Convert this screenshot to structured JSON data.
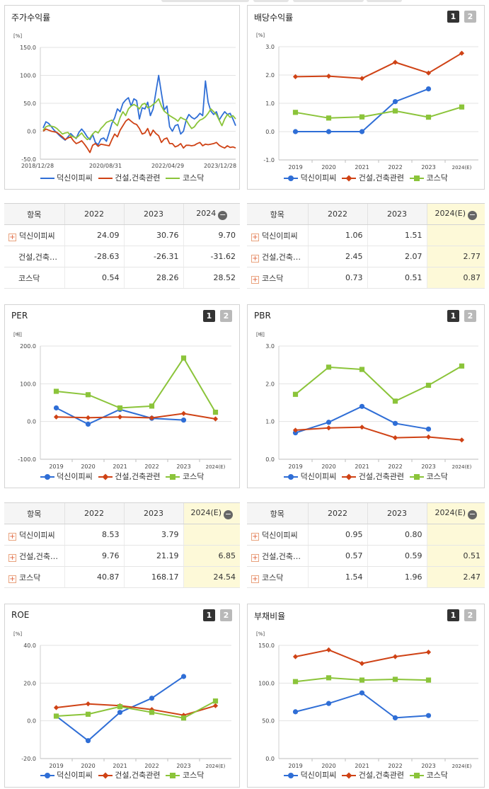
{
  "colors": {
    "blue": "#2f6ed6",
    "red": "#cf4215",
    "green": "#8bc43a"
  },
  "legend": [
    "덕신이피씨",
    "건설,건축관련",
    "코스닥"
  ],
  "stock_panel": {
    "title": "주가수익률"
  },
  "div_panel": {
    "title": "배당수익률",
    "page1": "1",
    "page2": "2"
  },
  "per_panel": {
    "title": "PER",
    "page1": "1",
    "page2": "2"
  },
  "pbr_panel": {
    "title": "PBR",
    "page1": "1",
    "page2": "2"
  },
  "roe_panel": {
    "title": "ROE",
    "page1": "1",
    "page2": "2"
  },
  "debt_panel": {
    "title": "부채비율",
    "page1": "1",
    "page2": "2"
  },
  "chart_data": [
    {
      "id": "stock",
      "type": "line",
      "unit": "[%]",
      "yticks": [
        "150.0",
        "100.0",
        "50.0",
        "0.0",
        "-50.0"
      ],
      "ylim": [
        -50,
        150
      ],
      "xticks": [
        "2018/12/28",
        "2020/08/31",
        "2022/04/29",
        "2023/12/28"
      ],
      "series": [
        {
          "name": "덕신이피씨",
          "color": "#2f6ed6",
          "values": [
            6,
            17,
            14,
            8,
            2,
            -3,
            -8,
            -12,
            -16,
            -10,
            -4,
            -9,
            -13,
            -2,
            4,
            -2,
            -10,
            -15,
            -6,
            -20,
            -24,
            -14,
            -12,
            -18,
            -2,
            14,
            24,
            40,
            35,
            50,
            56,
            60,
            45,
            58,
            55,
            22,
            42,
            40,
            52,
            28,
            40,
            70,
            100,
            68,
            38,
            45,
            8,
            0,
            10,
            12,
            -5,
            0,
            20,
            30,
            25,
            22,
            26,
            32,
            28,
            90,
            52,
            36,
            30,
            35,
            20,
            28,
            35,
            30,
            32,
            22,
            10
          ]
        },
        {
          "name": "건설,건축관련",
          "color": "#cf4215",
          "values": [
            0,
            4,
            2,
            0,
            -1,
            -2,
            -6,
            -10,
            -15,
            -12,
            -10,
            -17,
            -22,
            -20,
            -17,
            -23,
            -30,
            -38,
            -25,
            -22,
            -27,
            -23,
            -24,
            -25,
            -26,
            -15,
            -5,
            -10,
            2,
            10,
            18,
            22,
            18,
            14,
            12,
            5,
            -5,
            -3,
            5,
            -8,
            2,
            -4,
            -8,
            -20,
            -14,
            -12,
            -22,
            -22,
            -28,
            -26,
            -22,
            -30,
            -25,
            -25,
            -26,
            -25,
            -22,
            -20,
            -26,
            -23,
            -24,
            -23,
            -22,
            -20,
            -25,
            -28,
            -30,
            -26,
            -29,
            -28,
            -30
          ]
        },
        {
          "name": "코스닥",
          "color": "#8bc43a",
          "values": [
            2,
            8,
            10,
            9,
            8,
            5,
            0,
            -5,
            -3,
            -2,
            -8,
            -10,
            -12,
            -8,
            -3,
            -10,
            -15,
            -12,
            -5,
            0,
            -3,
            5,
            10,
            16,
            18,
            20,
            15,
            10,
            25,
            35,
            28,
            40,
            45,
            48,
            45,
            40,
            48,
            50,
            42,
            44,
            48,
            52,
            58,
            45,
            36,
            32,
            28,
            25,
            22,
            18,
            25,
            22,
            20,
            12,
            5,
            8,
            15,
            20,
            22,
            26,
            32,
            40,
            35,
            30,
            20,
            10,
            22,
            30,
            25,
            28,
            22
          ]
        }
      ]
    },
    {
      "id": "div",
      "type": "line",
      "unit": "[%]",
      "yticks": [
        "3.0",
        "2.0",
        "1.0",
        "0.0",
        "-1.0"
      ],
      "ylim": [
        -1,
        3
      ],
      "categories": [
        "2019",
        "2020",
        "2021",
        "2022",
        "2023",
        "2024(E)"
      ],
      "series": [
        {
          "name": "덕신이피씨",
          "color": "#2f6ed6",
          "values": [
            0.0,
            0.0,
            0.0,
            1.06,
            1.51,
            null
          ]
        },
        {
          "name": "건설,건축관련",
          "color": "#cf4215",
          "values": [
            1.94,
            1.96,
            1.88,
            2.45,
            2.07,
            2.77
          ]
        },
        {
          "name": "코스닥",
          "color": "#8bc43a",
          "values": [
            0.68,
            0.48,
            0.52,
            0.73,
            0.51,
            0.87
          ]
        }
      ]
    },
    {
      "id": "per",
      "type": "line",
      "unit": "[배]",
      "yticks": [
        "200.0",
        "100.0",
        "0.0",
        "-100.0"
      ],
      "ylim": [
        -100,
        200
      ],
      "categories": [
        "2019",
        "2020",
        "2021",
        "2022",
        "2023",
        "2024(E)"
      ],
      "series": [
        {
          "name": "덕신이피씨",
          "color": "#2f6ed6",
          "values": [
            36,
            -7,
            32,
            8.53,
            3.79,
            null
          ]
        },
        {
          "name": "건설,건축관련",
          "color": "#cf4215",
          "values": [
            12,
            10,
            12,
            9.76,
            21.19,
            6.85
          ]
        },
        {
          "name": "코스닥",
          "color": "#8bc43a",
          "values": [
            80,
            71,
            36,
            40.87,
            168.17,
            24.54
          ]
        }
      ]
    },
    {
      "id": "pbr",
      "type": "line",
      "unit": "[배]",
      "yticks": [
        "3.0",
        "2.0",
        "1.0",
        "0.0"
      ],
      "ylim": [
        0,
        3
      ],
      "categories": [
        "2019",
        "2020",
        "2021",
        "2022",
        "2023",
        "2024(E)"
      ],
      "series": [
        {
          "name": "덕신이피씨",
          "color": "#2f6ed6",
          "values": [
            0.7,
            0.98,
            1.4,
            0.95,
            0.8,
            null
          ]
        },
        {
          "name": "건설,건축관련",
          "color": "#cf4215",
          "values": [
            0.77,
            0.83,
            0.85,
            0.57,
            0.59,
            0.51
          ]
        },
        {
          "name": "코스닥",
          "color": "#8bc43a",
          "values": [
            1.72,
            2.44,
            2.38,
            1.54,
            1.96,
            2.47
          ]
        }
      ]
    },
    {
      "id": "roe",
      "type": "line",
      "unit": "[%]",
      "yticks": [
        "40.0",
        "20.0",
        "0.0",
        "-20.0"
      ],
      "ylim": [
        -20,
        40
      ],
      "categories": [
        "2019",
        "2020",
        "2021",
        "2022",
        "2023",
        "2024(E)"
      ],
      "series": [
        {
          "name": "덕신이피씨",
          "color": "#2f6ed6",
          "values": [
            2.5,
            -10.5,
            4.5,
            12,
            23.5,
            null
          ]
        },
        {
          "name": "건설,건축관련",
          "color": "#cf4215",
          "values": [
            7,
            9,
            8,
            6,
            3,
            8
          ]
        },
        {
          "name": "코스닥",
          "color": "#8bc43a",
          "values": [
            2.5,
            3.5,
            7.5,
            4.5,
            1.5,
            10.5
          ]
        }
      ]
    },
    {
      "id": "debt",
      "type": "line",
      "unit": "[%]",
      "yticks": [
        "150.0",
        "100.0",
        "50.0",
        "0.0"
      ],
      "ylim": [
        0,
        150
      ],
      "categories": [
        "2019",
        "2020",
        "2021",
        "2022",
        "2023",
        "2024(E)"
      ],
      "series": [
        {
          "name": "덕신이피씨",
          "color": "#2f6ed6",
          "values": [
            62,
            73,
            87,
            54,
            57,
            null
          ]
        },
        {
          "name": "건설,건축관련",
          "color": "#cf4215",
          "values": [
            135,
            144,
            126,
            135,
            141,
            null
          ]
        },
        {
          "name": "코스닥",
          "color": "#8bc43a",
          "values": [
            102,
            107,
            104,
            105,
            104,
            null
          ]
        }
      ]
    }
  ],
  "tables": {
    "stock": {
      "headers": [
        "항목",
        "2022",
        "2023",
        "2024"
      ],
      "rows": [
        {
          "name": "덕신이피씨",
          "plus": true,
          "values": [
            "24.09",
            "30.76",
            "9.70"
          ]
        },
        {
          "name": "건설,건축…",
          "plus": false,
          "values": [
            "-28.63",
            "-26.31",
            "-31.62"
          ]
        },
        {
          "name": "코스닥",
          "plus": false,
          "values": [
            "0.54",
            "28.26",
            "28.52"
          ]
        }
      ]
    },
    "div": {
      "headers": [
        "항목",
        "2022",
        "2023",
        "2024(E)"
      ],
      "rows": [
        {
          "name": "덕신이피씨",
          "plus": true,
          "values": [
            "1.06",
            "1.51",
            ""
          ]
        },
        {
          "name": "건설,건축…",
          "plus": true,
          "values": [
            "2.45",
            "2.07",
            "2.77"
          ]
        },
        {
          "name": "코스닥",
          "plus": true,
          "values": [
            "0.73",
            "0.51",
            "0.87"
          ]
        }
      ]
    },
    "per": {
      "headers": [
        "항목",
        "2022",
        "2023",
        "2024(E)"
      ],
      "rows": [
        {
          "name": "덕신이피씨",
          "plus": true,
          "values": [
            "8.53",
            "3.79",
            ""
          ]
        },
        {
          "name": "건설,건축…",
          "plus": true,
          "values": [
            "9.76",
            "21.19",
            "6.85"
          ]
        },
        {
          "name": "코스닥",
          "plus": true,
          "values": [
            "40.87",
            "168.17",
            "24.54"
          ]
        }
      ]
    },
    "pbr": {
      "headers": [
        "항목",
        "2022",
        "2023",
        "2024(E)"
      ],
      "rows": [
        {
          "name": "덕신이피씨",
          "plus": true,
          "values": [
            "0.95",
            "0.80",
            ""
          ]
        },
        {
          "name": "건설,건축…",
          "plus": true,
          "values": [
            "0.57",
            "0.59",
            "0.51"
          ]
        },
        {
          "name": "코스닥",
          "plus": true,
          "values": [
            "1.54",
            "1.96",
            "2.47"
          ]
        }
      ]
    }
  }
}
